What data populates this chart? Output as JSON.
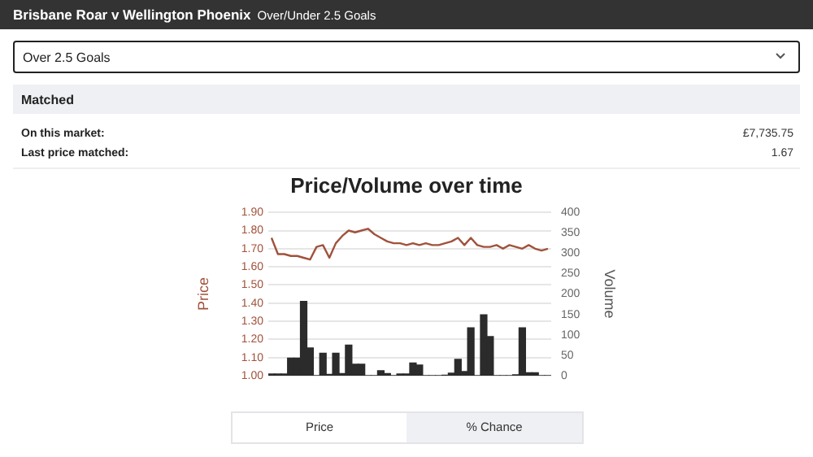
{
  "chart_data": {
    "type": "bar",
    "title": "Price/Volume over time",
    "ylabel": "Price",
    "y2label": "Volume",
    "annotations": [
      "Brisbane Roar v Wellington Phoenix",
      "Over/Under 2.5 Goals",
      "Over 2.5 Goals",
      "Matched",
      "On this market:",
      "£7,735.75",
      "Last price matched:",
      "1.67",
      "Price",
      "% Chance"
    ],
    "categories": [
      null,
      null,
      null,
      null,
      null,
      null,
      null,
      null,
      null,
      null,
      null,
      null,
      null,
      null,
      null,
      null,
      null,
      null,
      null,
      null,
      null,
      null,
      null,
      null,
      null,
      null,
      null,
      null,
      null,
      null,
      null,
      null,
      null,
      null,
      null,
      null,
      null,
      null,
      null,
      null,
      null,
      null,
      null,
      null
    ],
    "series": [
      {
        "axis": "y2",
        "color": "#2b2b2b",
        "values": [
          4,
          4,
          4,
          43,
          43,
          182,
          68,
          0,
          55,
          3,
          55,
          5,
          75,
          28,
          28,
          0,
          0,
          12,
          5,
          0,
          4,
          4,
          31,
          26,
          0,
          0,
          0,
          1,
          6,
          40,
          10,
          117,
          0,
          149,
          96,
          0,
          0,
          0,
          2,
          117,
          7,
          7,
          0,
          0
        ]
      },
      {
        "type": "line",
        "axis": "y",
        "color": "#a0523c",
        "values": [
          1.76,
          1.67,
          1.67,
          1.66,
          1.66,
          1.65,
          1.64,
          1.71,
          1.72,
          1.65,
          1.73,
          1.77,
          1.8,
          1.79,
          1.8,
          1.81,
          1.78,
          1.76,
          1.74,
          1.73,
          1.73,
          1.72,
          1.73,
          1.72,
          1.73,
          1.72,
          1.72,
          1.73,
          1.74,
          1.76,
          1.72,
          1.76,
          1.72,
          1.71,
          1.71,
          1.72,
          1.7,
          1.72,
          1.71,
          1.7,
          1.72,
          1.7,
          1.69,
          1.7
        ]
      }
    ],
    "ylim": [
      1,
      1.9
    ],
    "yticks": [
      {
        "value": 1,
        "label": "1.00"
      },
      {
        "value": 1.1,
        "label": "1.10"
      },
      {
        "value": 1.2,
        "label": "1.20"
      },
      {
        "value": 1.3,
        "label": "1.30"
      },
      {
        "value": 1.4,
        "label": "1.40"
      },
      {
        "value": 1.5,
        "label": "1.50"
      },
      {
        "value": 1.6,
        "label": "1.60"
      },
      {
        "value": 1.7,
        "label": "1.70"
      },
      {
        "value": 1.8,
        "label": "1.80"
      },
      {
        "value": 1.9,
        "label": "1.90"
      }
    ],
    "y2lim": [
      0,
      400
    ],
    "y2ticks": [
      0,
      50,
      100,
      150,
      200,
      250,
      300,
      350,
      400
    ],
    "grid": "y",
    "legend": false,
    "marker": "none",
    "tick_labels": "y"
  }
}
